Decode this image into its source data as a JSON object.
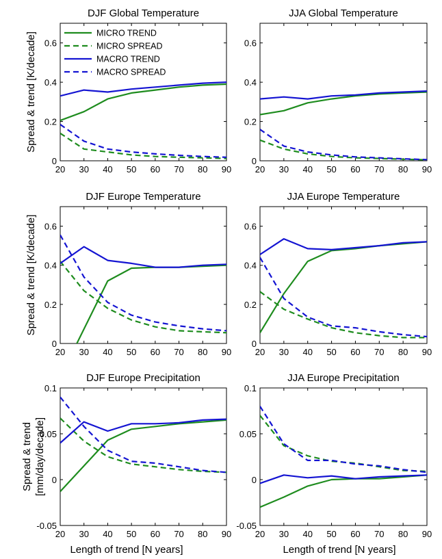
{
  "colors": {
    "micro": "#1e8c1e",
    "macro": "#1414d2"
  },
  "figure": {
    "ylabels": [
      {
        "lines": [
          "Spread & trend [K/decade]"
        ]
      },
      {
        "lines": [
          "Spread & trend [K/decade]"
        ]
      },
      {
        "lines": [
          "Spread & trend",
          "[mm/day/decade]"
        ]
      }
    ],
    "xlabel": "Length of trend [N years]"
  },
  "legend": [
    {
      "label": "MICRO TREND",
      "series": "micro",
      "dash": false
    },
    {
      "label": "MICRO SPREAD",
      "series": "micro",
      "dash": true
    },
    {
      "label": "MACRO TREND",
      "series": "macro",
      "dash": false
    },
    {
      "label": "MACRO SPREAD",
      "series": "macro",
      "dash": true
    }
  ],
  "chart_data": [
    {
      "type": "line",
      "title": "DJF Global Temperature",
      "x": [
        20,
        30,
        40,
        50,
        60,
        70,
        80,
        90
      ],
      "xticks": [
        20,
        30,
        40,
        50,
        60,
        70,
        80,
        90
      ],
      "ylim": [
        0,
        0.7
      ],
      "yticks": [
        0,
        0.2,
        0.4,
        0.6
      ],
      "ytick_labels": [
        "0",
        "0.2",
        "0.4",
        "0.6"
      ],
      "legend_position": "top-left",
      "series": [
        {
          "name": "MICRO TREND",
          "values": [
            0.205,
            0.25,
            0.315,
            0.345,
            0.36,
            0.375,
            0.385,
            0.39
          ]
        },
        {
          "name": "MICRO SPREAD",
          "values": [
            0.14,
            0.06,
            0.045,
            0.03,
            0.022,
            0.018,
            0.015,
            0.012
          ]
        },
        {
          "name": "MACRO TREND",
          "values": [
            0.33,
            0.36,
            0.35,
            0.365,
            0.375,
            0.385,
            0.395,
            0.4
          ]
        },
        {
          "name": "MACRO SPREAD",
          "values": [
            0.185,
            0.1,
            0.06,
            0.045,
            0.035,
            0.028,
            0.022,
            0.018
          ]
        }
      ]
    },
    {
      "type": "line",
      "title": "JJA Global Temperature",
      "x": [
        20,
        30,
        40,
        50,
        60,
        70,
        80,
        90
      ],
      "xticks": [
        20,
        30,
        40,
        50,
        60,
        70,
        80,
        90
      ],
      "ylim": [
        0,
        0.7
      ],
      "yticks": [
        0,
        0.2,
        0.4,
        0.6
      ],
      "ytick_labels": [
        "0",
        "0.2",
        "0.4",
        "0.6"
      ],
      "series": [
        {
          "name": "MICRO TREND",
          "values": [
            0.235,
            0.255,
            0.295,
            0.315,
            0.33,
            0.34,
            0.345,
            0.35
          ]
        },
        {
          "name": "MICRO SPREAD",
          "values": [
            0.105,
            0.06,
            0.035,
            0.022,
            0.015,
            0.012,
            0.008,
            0.005
          ]
        },
        {
          "name": "MACRO TREND",
          "values": [
            0.315,
            0.325,
            0.315,
            0.33,
            0.335,
            0.345,
            0.35,
            0.355
          ]
        },
        {
          "name": "MACRO SPREAD",
          "values": [
            0.16,
            0.075,
            0.045,
            0.03,
            0.02,
            0.015,
            0.01,
            0.006
          ]
        }
      ]
    },
    {
      "type": "line",
      "title": "DJF Europe Temperature",
      "x": [
        20,
        30,
        40,
        50,
        60,
        70,
        80,
        90
      ],
      "xticks": [
        20,
        30,
        40,
        50,
        60,
        70,
        80,
        90
      ],
      "ylim": [
        0,
        0.7
      ],
      "yticks": [
        0,
        0.2,
        0.4,
        0.6
      ],
      "ytick_labels": [
        "0",
        "0.2",
        "0.4",
        "0.6"
      ],
      "series": [
        {
          "name": "MICRO TREND",
          "x": [
            27,
            40,
            50,
            60,
            70,
            80,
            90
          ],
          "values": [
            0,
            0.32,
            0.385,
            0.39,
            0.39,
            0.395,
            0.4
          ]
        },
        {
          "name": "MICRO SPREAD",
          "values": [
            0.42,
            0.27,
            0.18,
            0.12,
            0.085,
            0.065,
            0.06,
            0.055
          ]
        },
        {
          "name": "MACRO TREND",
          "values": [
            0.41,
            0.495,
            0.425,
            0.41,
            0.39,
            0.39,
            0.4,
            0.405
          ]
        },
        {
          "name": "MACRO SPREAD",
          "values": [
            0.555,
            0.34,
            0.21,
            0.145,
            0.11,
            0.09,
            0.075,
            0.065
          ]
        }
      ]
    },
    {
      "type": "line",
      "title": "JJA Europe Temperature",
      "x": [
        20,
        30,
        40,
        50,
        60,
        70,
        80,
        90
      ],
      "xticks": [
        20,
        30,
        40,
        50,
        60,
        70,
        80,
        90
      ],
      "ylim": [
        0,
        0.7
      ],
      "yticks": [
        0,
        0.2,
        0.4,
        0.6
      ],
      "ytick_labels": [
        "0",
        "0.2",
        "0.4",
        "0.6"
      ],
      "series": [
        {
          "name": "MICRO TREND",
          "values": [
            0.055,
            0.255,
            0.42,
            0.475,
            0.485,
            0.5,
            0.51,
            0.52
          ]
        },
        {
          "name": "MICRO SPREAD",
          "values": [
            0.265,
            0.175,
            0.125,
            0.08,
            0.055,
            0.04,
            0.03,
            0.03
          ]
        },
        {
          "name": "MACRO TREND",
          "values": [
            0.455,
            0.535,
            0.485,
            0.48,
            0.49,
            0.5,
            0.515,
            0.52
          ]
        },
        {
          "name": "MACRO SPREAD",
          "values": [
            0.44,
            0.23,
            0.135,
            0.09,
            0.08,
            0.06,
            0.045,
            0.035
          ]
        }
      ]
    },
    {
      "type": "line",
      "title": "DJF Europe Precipitation",
      "x": [
        20,
        30,
        40,
        50,
        60,
        70,
        80,
        90
      ],
      "xticks": [
        20,
        30,
        40,
        50,
        60,
        70,
        80,
        90
      ],
      "ylim": [
        -0.05,
        0.1
      ],
      "yticks": [
        -0.05,
        0,
        0.05,
        0.1
      ],
      "ytick_labels": [
        "-0.05",
        "0",
        "0.05",
        "0.1"
      ],
      "series": [
        {
          "name": "MICRO TREND",
          "values": [
            -0.013,
            0.015,
            0.043,
            0.055,
            0.058,
            0.061,
            0.063,
            0.065
          ]
        },
        {
          "name": "MICRO SPREAD",
          "values": [
            0.067,
            0.042,
            0.025,
            0.017,
            0.014,
            0.011,
            0.009,
            0.008
          ]
        },
        {
          "name": "MACRO TREND",
          "values": [
            0.04,
            0.063,
            0.053,
            0.061,
            0.061,
            0.062,
            0.065,
            0.066
          ]
        },
        {
          "name": "MACRO SPREAD",
          "values": [
            0.09,
            0.058,
            0.032,
            0.02,
            0.018,
            0.014,
            0.01,
            0.008
          ]
        }
      ]
    },
    {
      "type": "line",
      "title": "JJA Europe Precipitation",
      "x": [
        20,
        30,
        40,
        50,
        60,
        70,
        80,
        90
      ],
      "xticks": [
        20,
        30,
        40,
        50,
        60,
        70,
        80,
        90
      ],
      "ylim": [
        -0.05,
        0.1
      ],
      "yticks": [
        -0.05,
        0,
        0.05,
        0.1
      ],
      "ytick_labels": [
        "-0.05",
        "0",
        "0.05",
        "0.1"
      ],
      "series": [
        {
          "name": "MICRO TREND",
          "values": [
            -0.03,
            -0.019,
            -0.007,
            0.0,
            0.001,
            0.001,
            0.003,
            0.005
          ]
        },
        {
          "name": "MICRO SPREAD",
          "values": [
            0.07,
            0.037,
            0.026,
            0.02,
            0.018,
            0.014,
            0.01,
            0.009
          ]
        },
        {
          "name": "MACRO TREND",
          "values": [
            -0.004,
            0.005,
            0.002,
            0.004,
            0.001,
            0.003,
            0.004,
            0.005
          ]
        },
        {
          "name": "MACRO SPREAD",
          "values": [
            0.08,
            0.039,
            0.021,
            0.021,
            0.017,
            0.015,
            0.011,
            0.008
          ]
        }
      ]
    }
  ]
}
